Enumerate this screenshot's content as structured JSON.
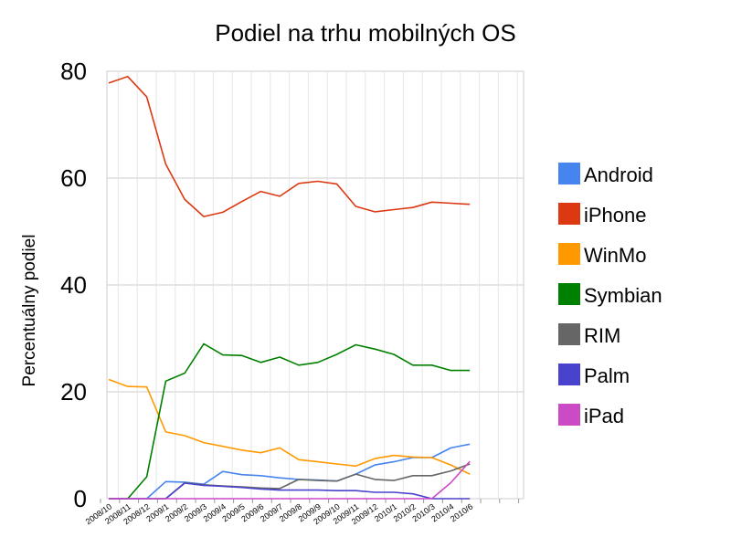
{
  "chart_data": {
    "type": "line",
    "title": "Podiel na trhu mobilných OS",
    "xlabel": "",
    "ylabel": "Percentuálny podiel",
    "ylim": [
      0,
      80
    ],
    "yticks": [
      "0",
      "20",
      "40",
      "60",
      "80"
    ],
    "grid": true,
    "legend_position": "right",
    "categories": [
      "2008/10",
      "2008/11",
      "2008/12",
      "2009/1",
      "2009/2",
      "2009/3",
      "2009/4",
      "2009/5",
      "2009/6",
      "2009/7",
      "2009/8",
      "2009/9",
      "2009/10",
      "2009/11",
      "2009/12",
      "2010/1",
      "2010/2",
      "2010/3",
      "2010/4",
      "2010/6"
    ],
    "series": [
      {
        "name": "Android",
        "color": "#4684ee",
        "values": [
          0,
          0,
          0,
          3.2,
          3.1,
          2.7,
          5.1,
          4.5,
          4.3,
          3.9,
          3.6,
          3.5,
          3.3,
          4.6,
          6.3,
          6.9,
          7.7,
          7.7,
          9.5,
          10.2
        ]
      },
      {
        "name": "iPhone",
        "color": "#dc3912",
        "values": [
          77.8,
          79,
          75.2,
          62.6,
          56,
          52.8,
          53.6,
          55.6,
          57.5,
          56.6,
          59,
          59.4,
          58.9,
          54.7,
          53.7,
          54.1,
          54.5,
          55.5,
          55.3,
          55.1
        ]
      },
      {
        "name": "WinMo",
        "color": "#ff9900",
        "values": [
          22.3,
          21,
          20.9,
          12.5,
          11.8,
          10.5,
          9.8,
          9.1,
          8.6,
          9.5,
          7.3,
          6.9,
          6.5,
          6.1,
          7.5,
          8.1,
          7.8,
          7.7,
          6.3,
          4.6
        ]
      },
      {
        "name": "Symbian",
        "color": "#008000",
        "values": [
          0,
          0,
          4.1,
          22,
          23.5,
          29,
          26.9,
          26.8,
          25.5,
          26.5,
          25,
          25.5,
          27,
          28.8,
          28,
          27,
          25,
          25,
          24,
          24
        ]
      },
      {
        "name": "RIM",
        "color": "#666666",
        "values": [
          0,
          0,
          0,
          0,
          3,
          2.6,
          2.4,
          2.2,
          2,
          1.9,
          3.6,
          3.4,
          3.3,
          4.6,
          3.6,
          3.4,
          4.3,
          4.3,
          5.2,
          6.5
        ]
      },
      {
        "name": "Palm",
        "color": "#4942cc",
        "values": [
          0,
          0,
          0,
          0,
          2.9,
          2.5,
          2.3,
          2.1,
          1.8,
          1.6,
          1.6,
          1.6,
          1.5,
          1.5,
          1.2,
          1.2,
          0.9,
          0,
          0,
          0
        ]
      },
      {
        "name": "iPad",
        "color": "#cb4ac5",
        "values": [
          0,
          0,
          0,
          0,
          0,
          0,
          0,
          0,
          0,
          0,
          0,
          0,
          0,
          0,
          0,
          0,
          0,
          0,
          3,
          7
        ]
      }
    ]
  }
}
